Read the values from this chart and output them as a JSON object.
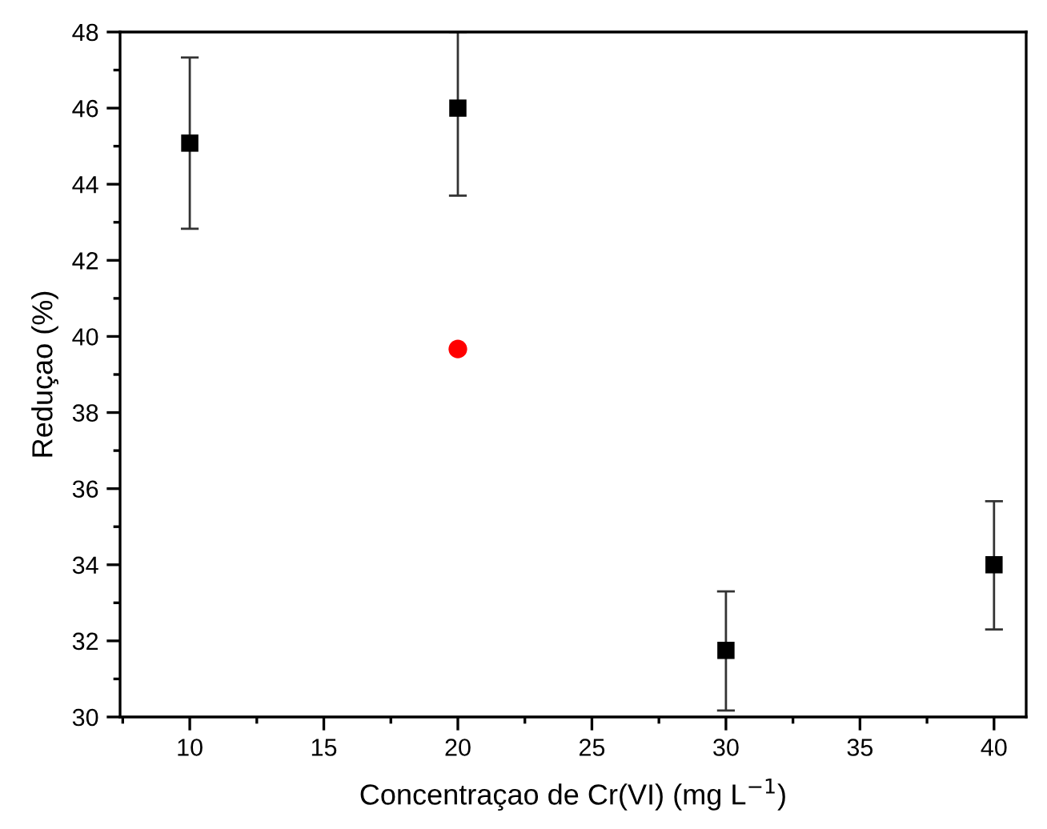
{
  "chart_data": {
    "type": "scatter",
    "xlabel": "Concentraçao de Cr(VI) (mg L$^{−1}$)",
    "ylabel": "Reduçao (%)",
    "xlim": [
      7.4,
      41.2
    ],
    "xticks": [
      10,
      15,
      20,
      25,
      30,
      35,
      40
    ],
    "ylim": [
      30,
      48
    ],
    "yticks": [
      30,
      32,
      34,
      36,
      38,
      40,
      42,
      44,
      46,
      48
    ],
    "grid": false,
    "series": [
      {
        "color": "#000000",
        "marker": "square",
        "x": [
          10,
          20,
          30,
          40
        ],
        "values": [
          45.08,
          46.0,
          31.75,
          34.0
        ],
        "errors": [
          [
            42.83,
            47.33
          ],
          [
            43.7,
            48
          ],
          [
            30.17,
            33.3
          ],
          [
            32.3,
            35.67
          ]
        ]
      },
      {
        "color": "#ff0000",
        "marker": "circle",
        "x": [
          20
        ],
        "values": [
          39.67
        ]
      }
    ]
  }
}
